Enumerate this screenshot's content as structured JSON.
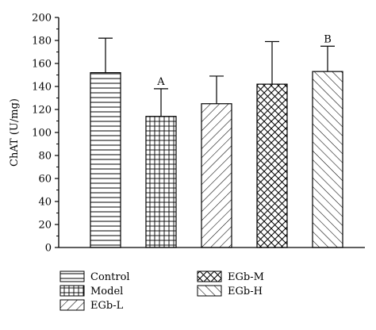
{
  "chart_data": {
    "type": "bar",
    "categories": [
      "Control",
      "Model",
      "EGb-L",
      "EGb-M",
      "EGb-H"
    ],
    "values": [
      152,
      114,
      125,
      142,
      153
    ],
    "error_upper": [
      182,
      138,
      149,
      179,
      175
    ],
    "annotations": [
      "",
      "A",
      "",
      "",
      "B"
    ],
    "ylabel": "ChAT (U/mg)",
    "xlabel": "",
    "ylim": [
      0,
      200
    ],
    "yticks": [
      0,
      20,
      40,
      60,
      80,
      100,
      120,
      140,
      160,
      180,
      200
    ],
    "patterns": [
      "horizontal",
      "grid",
      "diagonal",
      "crosshatch",
      "backdiagonal"
    ],
    "legend": {
      "placement": "bottom",
      "entries": [
        "Control",
        "Model",
        "EGb-L",
        "EGb-M",
        "EGb-H"
      ]
    },
    "grid": false,
    "colors": {
      "stroke": "#000000",
      "fill": "#ffffff"
    }
  }
}
